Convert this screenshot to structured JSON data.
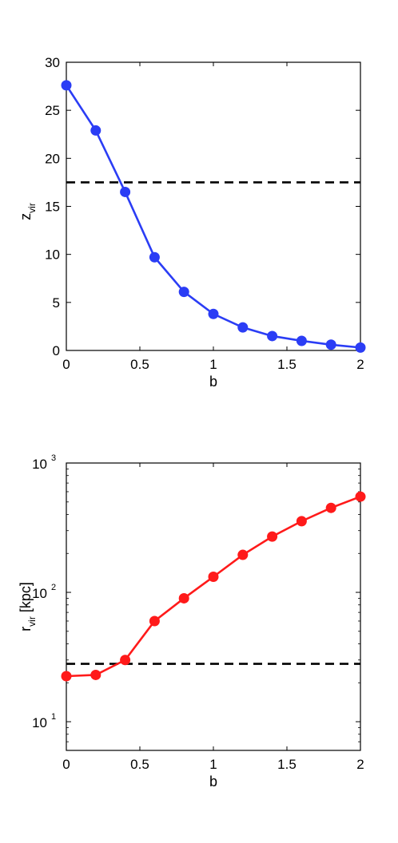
{
  "chart_data": [
    {
      "type": "line",
      "xlabel": "b",
      "ylabel_main": "z",
      "ylabel_sub": "vir",
      "xlim": [
        0,
        2
      ],
      "ylim": [
        0,
        30
      ],
      "yscale": "linear",
      "xticks": [
        0,
        0.5,
        1,
        1.5,
        2
      ],
      "xtick_labels": [
        "0",
        "0.5",
        "1",
        "1.5",
        "2"
      ],
      "yticks": [
        0,
        5,
        10,
        15,
        20,
        25,
        30
      ],
      "ytick_labels": [
        "0",
        "5",
        "10",
        "15",
        "20",
        "25",
        "30"
      ],
      "grid": false,
      "series": [
        {
          "color": "#2b3df5",
          "marker": "circle",
          "x": [
            0,
            0.2,
            0.4,
            0.6,
            0.8,
            1.0,
            1.2,
            1.4,
            1.6,
            1.8,
            2.0
          ],
          "y": [
            27.6,
            22.9,
            16.5,
            9.7,
            6.1,
            3.8,
            2.4,
            1.5,
            1.0,
            0.6,
            0.3
          ]
        }
      ],
      "reference_lines": [
        {
          "orientation": "horizontal",
          "y": 17.5,
          "style": "dashed",
          "color": "#000000"
        }
      ]
    },
    {
      "type": "line",
      "xlabel": "b",
      "ylabel_main": "r",
      "ylabel_sub": "vir",
      "ylabel_rest": " [kpc]",
      "xlim": [
        0,
        2
      ],
      "ylim": [
        6,
        1000
      ],
      "yscale": "log",
      "xticks": [
        0,
        0.5,
        1,
        1.5,
        2
      ],
      "xtick_labels": [
        "0",
        "0.5",
        "1",
        "1.5",
        "2"
      ],
      "yticks": [
        10,
        100,
        1000
      ],
      "ytick_base": "10",
      "ytick_exponents": [
        "1",
        "2",
        "3"
      ],
      "grid": false,
      "series": [
        {
          "color": "#ff1a1a",
          "marker": "circle",
          "x": [
            0,
            0.2,
            0.4,
            0.6,
            0.8,
            1.0,
            1.2,
            1.4,
            1.6,
            1.8,
            2.0
          ],
          "y": [
            22.5,
            23,
            30,
            60,
            90,
            132,
            195,
            270,
            355,
            450,
            550
          ]
        }
      ],
      "reference_lines": [
        {
          "orientation": "horizontal",
          "y": 28,
          "style": "dashed",
          "color": "#000000"
        }
      ]
    }
  ]
}
